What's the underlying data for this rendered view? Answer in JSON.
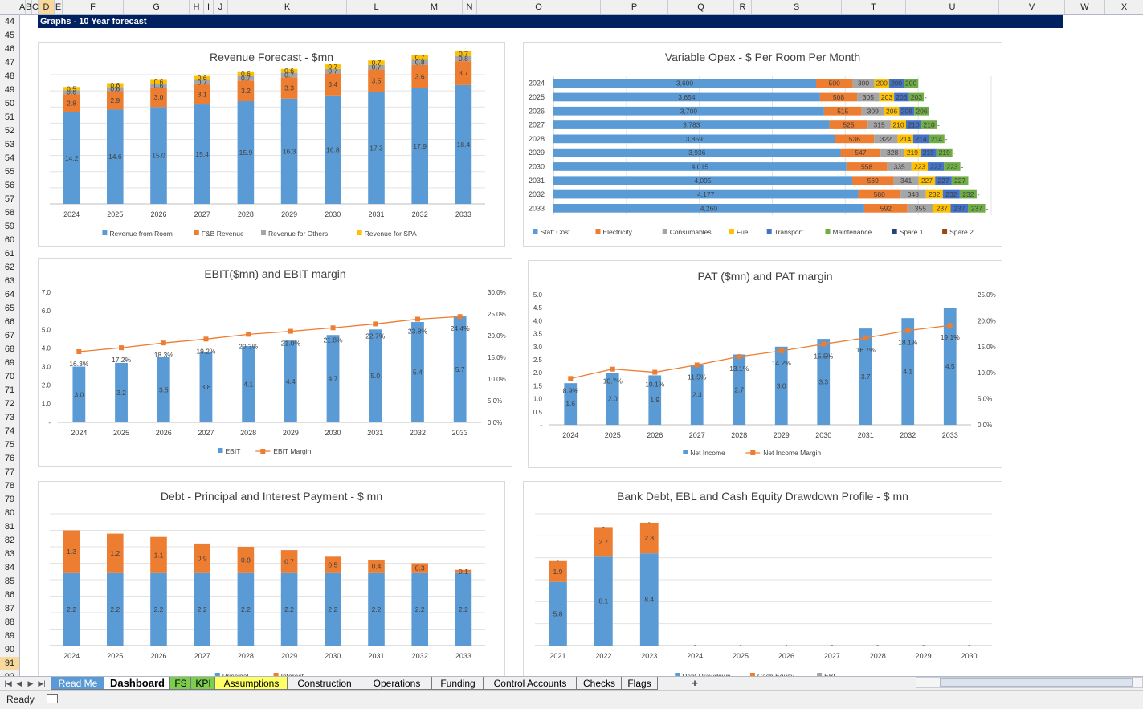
{
  "sheet": {
    "columns": [
      "A",
      "B",
      "C",
      "D",
      "E",
      "F",
      "G",
      "H",
      "I",
      "J",
      "K",
      "L",
      "M",
      "N",
      "O",
      "P",
      "Q",
      "R",
      "S",
      "T",
      "U",
      "V",
      "W",
      "X"
    ],
    "selected_column": "D",
    "rows": [
      "44",
      "45",
      "46",
      "47",
      "48",
      "49",
      "50",
      "51",
      "52",
      "53",
      "54",
      "55",
      "56",
      "57",
      "58",
      "59",
      "60",
      "61",
      "62",
      "63",
      "64",
      "65",
      "66",
      "67",
      "68",
      "69",
      "70",
      "71",
      "72",
      "73",
      "74",
      "75",
      "76",
      "77",
      "78",
      "79",
      "80",
      "81",
      "82",
      "83",
      "84",
      "85",
      "86",
      "87",
      "88",
      "89",
      "90",
      "91",
      "92"
    ],
    "selected_row": "91",
    "section_title": "Graphs - 10 Year forecast"
  },
  "colors": {
    "blue": "#5b9bd5",
    "orange": "#ed7d31",
    "gray": "#a5a5a5",
    "yellow": "#ffc000",
    "darkblue": "#4472c4",
    "green": "#70ad47",
    "navy": "#264478",
    "brown": "#9e480e",
    "title_bar": "#002060"
  },
  "charts": {
    "revenue": {
      "chart_data": {
        "type": "bar",
        "stacked": true,
        "title": "Revenue Forecast - $mn",
        "categories": [
          "2024",
          "2025",
          "2026",
          "2027",
          "2028",
          "2029",
          "2030",
          "2031",
          "2032",
          "2033"
        ],
        "series": [
          {
            "name": "Revenue from Room",
            "color": "#5b9bd5",
            "values": [
              14.2,
              14.6,
              15.0,
              15.4,
              15.9,
              16.3,
              16.8,
              17.3,
              17.9,
              18.4
            ]
          },
          {
            "name": "F&B Revenue",
            "color": "#ed7d31",
            "values": [
              2.8,
              2.9,
              3.0,
              3.1,
              3.2,
              3.3,
              3.4,
              3.5,
              3.6,
              3.7
            ]
          },
          {
            "name": "Revenue for Others",
            "color": "#a5a5a5",
            "values": [
              0.6,
              0.6,
              0.6,
              0.7,
              0.7,
              0.7,
              0.7,
              0.7,
              0.8,
              0.8
            ]
          },
          {
            "name": "Revenue for SPA",
            "color": "#ffc000",
            "values": [
              0.5,
              0.6,
              0.6,
              0.6,
              0.6,
              0.6,
              0.7,
              0.7,
              0.7,
              0.7
            ]
          }
        ],
        "grid": true,
        "legend": "bottom"
      }
    },
    "opex": {
      "chart_data": {
        "type": "bar",
        "orientation": "horizontal",
        "stacked": true,
        "title": "Variable Opex - $ Per Room Per Month",
        "categories": [
          "2024",
          "2025",
          "2026",
          "2027",
          "2028",
          "2029",
          "2030",
          "2031",
          "2032",
          "2033"
        ],
        "series": [
          {
            "name": "Staff Cost",
            "color": "#5b9bd5",
            "values": [
              3600,
              3654,
              3709,
              3783,
              3859,
              3936,
              4015,
              4095,
              4177,
              4260
            ]
          },
          {
            "name": "Electricity",
            "color": "#ed7d31",
            "values": [
              500,
              508,
              515,
              525,
              536,
              547,
              558,
              569,
              580,
              592
            ]
          },
          {
            "name": "Consumables",
            "color": "#a5a5a5",
            "values": [
              300,
              305,
              309,
              315,
              322,
              328,
              335,
              341,
              348,
              355
            ]
          },
          {
            "name": "Fuel",
            "color": "#ffc000",
            "values": [
              200,
              203,
              206,
              210,
              214,
              219,
              223,
              227,
              232,
              237
            ]
          },
          {
            "name": "Transport",
            "color": "#4472c4",
            "values": [
              200,
              203,
              206,
              210,
              214,
              219,
              223,
              227,
              232,
              237
            ]
          },
          {
            "name": "Maintenance",
            "color": "#70ad47",
            "values": [
              200,
              203,
              206,
              210,
              214,
              219,
              223,
              227,
              232,
              237
            ]
          },
          {
            "name": "Spare 1",
            "color": "#264478",
            "values": [
              0,
              0,
              0,
              0,
              0,
              0,
              0,
              0,
              0,
              0
            ]
          },
          {
            "name": "Spare 2",
            "color": "#9e480e",
            "values": [
              0,
              0,
              0,
              0,
              0,
              0,
              0,
              0,
              0,
              0
            ]
          }
        ],
        "legend": "bottom"
      }
    },
    "ebit": {
      "chart_data": {
        "type": "bar",
        "combo": "bar-line",
        "title": "EBIT($mn) and EBIT margin",
        "categories": [
          "2024",
          "2025",
          "2026",
          "2027",
          "2028",
          "2029",
          "2030",
          "2031",
          "2032",
          "2033"
        ],
        "series": [
          {
            "name": "EBIT",
            "type": "bar",
            "axis": "left",
            "color": "#5b9bd5",
            "values": [
              3.0,
              3.2,
              3.5,
              3.8,
              4.1,
              4.4,
              4.7,
              5.0,
              5.4,
              5.7
            ]
          },
          {
            "name": "EBIT Margin",
            "type": "line",
            "axis": "right",
            "color": "#ed7d31",
            "values": [
              16.3,
              17.2,
              18.3,
              19.2,
              20.3,
              21.0,
              21.8,
              22.7,
              23.8,
              24.4
            ],
            "labels": [
              "16.3%",
              "17.2%",
              "18.3%",
              "19.2%",
              "20.3%",
              "21.0%",
              "21.8%",
              "22.7%",
              "23.8%",
              "24.4%"
            ]
          }
        ],
        "yticks_left": [
          "-",
          "1.0",
          "2.0",
          "3.0",
          "4.0",
          "5.0",
          "6.0",
          "7.0"
        ],
        "yticks_right": [
          "0.0%",
          "5.0%",
          "10.0%",
          "15.0%",
          "20.0%",
          "25.0%",
          "30.0%"
        ],
        "ylim": [
          0,
          7
        ],
        "ylim_right": [
          0,
          30
        ],
        "grid": false,
        "legend": "bottom"
      }
    },
    "pat": {
      "chart_data": {
        "type": "bar",
        "combo": "bar-line",
        "title": "PAT ($mn) and PAT margin",
        "categories": [
          "2024",
          "2025",
          "2026",
          "2027",
          "2028",
          "2029",
          "2030",
          "2031",
          "2032",
          "2033"
        ],
        "series": [
          {
            "name": "Net Income",
            "type": "bar",
            "axis": "left",
            "color": "#5b9bd5",
            "values": [
              1.6,
              2.0,
              1.9,
              2.3,
              2.7,
              3.0,
              3.3,
              3.7,
              4.1,
              4.5
            ]
          },
          {
            "name": "Net Income Margin",
            "type": "line",
            "axis": "right",
            "color": "#ed7d31",
            "values": [
              8.9,
              10.7,
              10.1,
              11.5,
              13.1,
              14.2,
              15.5,
              16.7,
              18.1,
              19.1
            ],
            "labels": [
              "8.9%",
              "10.7%",
              "10.1%",
              "11.5%",
              "13.1%",
              "14.2%",
              "15.5%",
              "16.7%",
              "18.1%",
              "19.1%"
            ]
          }
        ],
        "yticks_left": [
          "-",
          "0.5",
          "1.0",
          "1.5",
          "2.0",
          "2.5",
          "3.0",
          "3.5",
          "4.0",
          "4.5",
          "5.0"
        ],
        "yticks_right": [
          "0.0%",
          "5.0%",
          "10.0%",
          "15.0%",
          "20.0%",
          "25.0%"
        ],
        "ylim": [
          0,
          5
        ],
        "ylim_right": [
          0,
          25
        ],
        "grid": false,
        "legend": "bottom"
      }
    },
    "debt": {
      "chart_data": {
        "type": "bar",
        "stacked": true,
        "title": "Debt - Principal and Interest Payment - $ mn",
        "categories": [
          "2024",
          "2025",
          "2026",
          "2027",
          "2028",
          "2029",
          "2030",
          "2031",
          "2032",
          "2033"
        ],
        "series": [
          {
            "name": "Principal",
            "color": "#5b9bd5",
            "values": [
              2.2,
              2.2,
              2.2,
              2.2,
              2.2,
              2.2,
              2.2,
              2.2,
              2.2,
              2.2
            ]
          },
          {
            "name": "Interest",
            "color": "#ed7d31",
            "values": [
              1.3,
              1.2,
              1.1,
              0.9,
              0.8,
              0.7,
              0.5,
              0.4,
              0.3,
              0.1
            ]
          }
        ],
        "grid": true,
        "legend": "bottom"
      }
    },
    "drawdown": {
      "chart_data": {
        "type": "bar",
        "stacked": true,
        "title": "Bank Debt, EBL and Cash Equity Drawdown Profile - $ mn",
        "categories": [
          "2021",
          "2022",
          "2023",
          "2024",
          "2025",
          "2026",
          "2027",
          "2028",
          "2029",
          "2030"
        ],
        "series": [
          {
            "name": "Debt Drawdown",
            "color": "#5b9bd5",
            "values": [
              5.8,
              8.1,
              8.4,
              0,
              0,
              0,
              0,
              0,
              0,
              0
            ]
          },
          {
            "name": "Cash Equity",
            "color": "#ed7d31",
            "values": [
              1.9,
              2.7,
              2.8,
              0,
              0,
              0,
              0,
              0,
              0,
              0
            ]
          },
          {
            "name": "EBL",
            "color": "#a5a5a5",
            "values": [
              0,
              0,
              0,
              0,
              0,
              0,
              0,
              0,
              0,
              0
            ]
          }
        ],
        "grid": true,
        "legend": "bottom"
      }
    }
  },
  "tabs": {
    "items": [
      {
        "label": "Read Me",
        "color": "#5b9bd5",
        "active": false
      },
      {
        "label": "Dashboard",
        "color": "#ffffff",
        "active": true
      },
      {
        "label": "FS",
        "color": "#7dcd4e",
        "active": false
      },
      {
        "label": "KPI",
        "color": "#7dcd4e",
        "active": false
      },
      {
        "label": "Assumptions",
        "color": "#ffff66",
        "active": false
      },
      {
        "label": "Construction",
        "color": "#f0f0f0",
        "active": false
      },
      {
        "label": "Operations",
        "color": "#f0f0f0",
        "active": false
      },
      {
        "label": "Funding",
        "color": "#f0f0f0",
        "active": false
      },
      {
        "label": "Control Accounts",
        "color": "#f0f0f0",
        "active": false
      },
      {
        "label": "Checks",
        "color": "#f0f0f0",
        "active": false
      },
      {
        "label": "Flags",
        "color": "#f0f0f0",
        "active": false
      }
    ]
  },
  "status": {
    "text": "Ready"
  }
}
